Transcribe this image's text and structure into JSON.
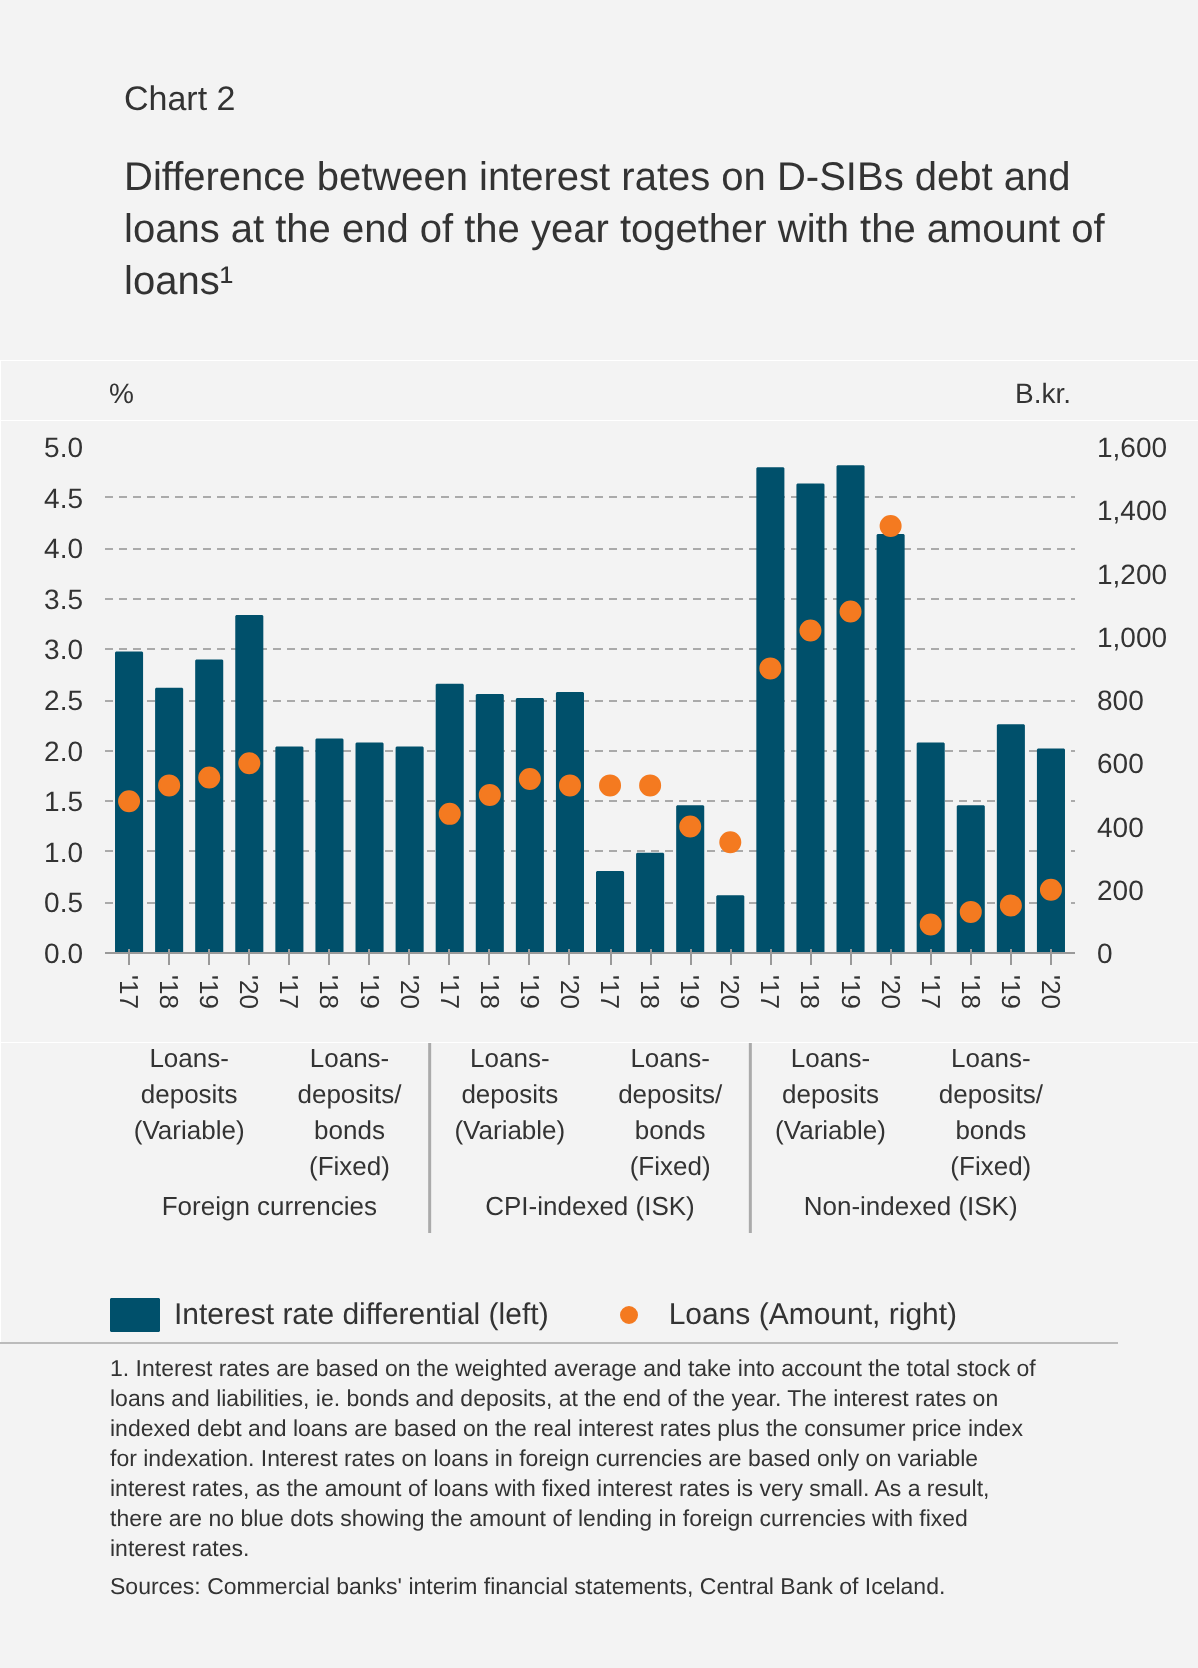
{
  "chart_data": {
    "type": "bar",
    "title": "Chart 2",
    "subtitle": "Difference between interest rates on D-SIBs debt and loans at the end of the year together with the amount of loans¹",
    "ylabel": "%",
    "y2label": "B.kr.",
    "categories": [
      "'17",
      "'18",
      "'19",
      "'20",
      "'17",
      "'18",
      "'19",
      "'20",
      "'17",
      "'18",
      "'19",
      "'20",
      "'17",
      "'18",
      "'19",
      "'20",
      "'17",
      "'18",
      "'19",
      "'20",
      "'17",
      "'18",
      "'19",
      "'20"
    ],
    "series": [
      {
        "name": "Interest rate differential (left)",
        "type": "bar",
        "color": "#00506b",
        "values": [
          2.97,
          2.61,
          2.89,
          3.33,
          2.03,
          2.11,
          2.07,
          2.03,
          2.65,
          2.55,
          2.51,
          2.57,
          0.8,
          0.98,
          1.45,
          0.56,
          4.79,
          4.63,
          4.81,
          4.13,
          2.07,
          1.45,
          2.25,
          2.01
        ]
      },
      {
        "name": "Loans (Amount, right)",
        "type": "scatter",
        "axis": "y2",
        "color": "#f47a20",
        "marker": "circle",
        "values": [
          480,
          530,
          555,
          600,
          null,
          null,
          null,
          null,
          440,
          500,
          550,
          530,
          530,
          530,
          400,
          350,
          900,
          1020,
          1080,
          1350,
          90,
          130,
          150,
          200
        ]
      }
    ],
    "ylim": [
      0,
      5
    ],
    "yticks": [
      {
        "value": 0,
        "label": "0.0"
      },
      {
        "value": 0.5,
        "label": "0.5"
      },
      {
        "value": 1,
        "label": "1.0"
      },
      {
        "value": 1.5,
        "label": "1.5"
      },
      {
        "value": 2,
        "label": "2.0"
      },
      {
        "value": 2.5,
        "label": "2.5"
      },
      {
        "value": 3,
        "label": "3.0"
      },
      {
        "value": 3.5,
        "label": "3.5"
      },
      {
        "value": 4,
        "label": "4.0"
      },
      {
        "value": 4.5,
        "label": "4.5"
      },
      {
        "value": 5,
        "label": "5.0"
      }
    ],
    "y2lim": [
      0,
      1600
    ],
    "y2ticks": [
      0,
      200,
      400,
      600,
      800,
      {
        "value": 1000,
        "label": "1,000"
      },
      {
        "value": 1200,
        "label": "1,200"
      },
      {
        "value": 1400,
        "label": "1,400"
      },
      {
        "value": 1600,
        "label": "1,600"
      }
    ],
    "grid": "y",
    "legend": "bottom",
    "annotations": [
      "Loans-\ndeposits\n(Variable)",
      "Loans-\ndeposits/\nbonds\n(Fixed)",
      "Loans-\ndeposits\n(Variable)",
      "Loans-\ndeposits/\nbonds\n(Fixed)",
      "Loans-\ndeposits\n(Variable)",
      "Loans-\ndeposits/\nbonds\n(Fixed)",
      "Foreign currencies",
      "CPI-indexed (ISK)",
      "Non-indexed (ISK)",
      "1. Interest rates are based on the weighted average and take into account the total stock of loans and liabilities, ie. bonds and deposits, at the end of the year. The interest rates on indexed debt and loans are based on the real interest rates plus the consumer price index for indexation. Interest rates on loans in foreign currencies are based only on variable interest rates, as the amount of loans with fixed interest rates is very small. As a result, there are no blue dots showing the amount of lending in foreign currencies with fixed interest rates.",
      "Sources: Commercial banks' interim financial statements, Central Bank of Iceland."
    ]
  }
}
